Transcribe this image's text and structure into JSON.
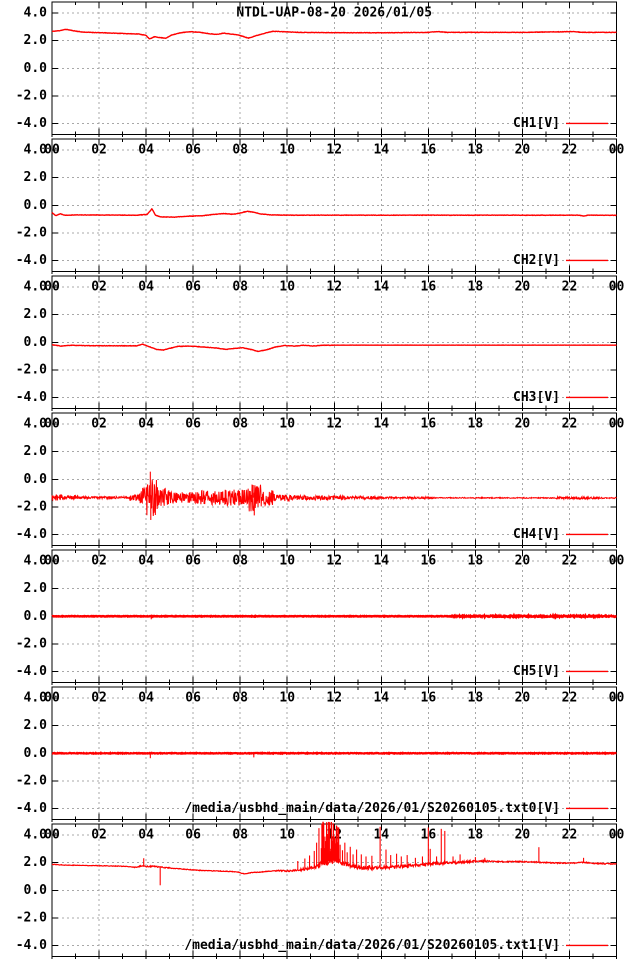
{
  "title": "NTDL-UAP-08-20 2026/01/05",
  "colors": {
    "trace": "#ff0000",
    "grid": "#a8a8a8",
    "border": "#000000",
    "text": "#000000"
  },
  "axes": {
    "x_tick_labels": [
      "00",
      "02",
      "04",
      "06",
      "08",
      "10",
      "12",
      "14",
      "16",
      "18",
      "20",
      "22",
      "00"
    ],
    "x_tick_hours": [
      0,
      2,
      4,
      6,
      8,
      10,
      12,
      14,
      16,
      18,
      20,
      22,
      24
    ],
    "x_minor_step": 1,
    "xlim": [
      0,
      24
    ],
    "y_tick_labels": [
      "4.0",
      "2.0",
      "0.0",
      "-2.0",
      "-4.0"
    ],
    "y_tick_values": [
      4,
      2,
      0,
      -2,
      -4
    ],
    "ylim": [
      -4.8,
      4.8
    ],
    "grid": "dashed"
  },
  "chart_data": [
    {
      "type": "line",
      "legend": "CH1[V]",
      "show_title": true,
      "show_top_xlabels": false,
      "stroke_width": 1.4,
      "seed": 11,
      "step": 0.02,
      "baseline": [
        [
          0,
          2.67
        ],
        [
          0.3,
          2.72
        ],
        [
          0.6,
          2.82
        ],
        [
          0.9,
          2.72
        ],
        [
          1.3,
          2.62
        ],
        [
          2.0,
          2.58
        ],
        [
          3.0,
          2.52
        ],
        [
          3.7,
          2.48
        ],
        [
          4.0,
          2.38
        ],
        [
          4.15,
          2.12
        ],
        [
          4.35,
          2.28
        ],
        [
          4.6,
          2.22
        ],
        [
          4.85,
          2.18
        ],
        [
          5.1,
          2.42
        ],
        [
          5.5,
          2.58
        ],
        [
          5.9,
          2.65
        ],
        [
          6.3,
          2.6
        ],
        [
          6.7,
          2.5
        ],
        [
          7.0,
          2.45
        ],
        [
          7.3,
          2.55
        ],
        [
          7.6,
          2.48
        ],
        [
          7.9,
          2.42
        ],
        [
          8.1,
          2.32
        ],
        [
          8.35,
          2.18
        ],
        [
          8.6,
          2.32
        ],
        [
          9.0,
          2.52
        ],
        [
          9.4,
          2.68
        ],
        [
          9.8,
          2.65
        ],
        [
          10.5,
          2.6
        ],
        [
          12,
          2.58
        ],
        [
          14,
          2.57
        ],
        [
          16,
          2.6
        ],
        [
          16.4,
          2.66
        ],
        [
          16.8,
          2.6
        ],
        [
          20,
          2.6
        ],
        [
          21.6,
          2.64
        ],
        [
          22.2,
          2.66
        ],
        [
          22.5,
          2.6
        ],
        [
          24,
          2.6
        ]
      ],
      "noise": [
        [
          0,
          24,
          0.015
        ]
      ],
      "spikes": []
    },
    {
      "type": "line",
      "legend": "CH2[V]",
      "show_title": false,
      "show_top_xlabels": true,
      "stroke_width": 1.4,
      "seed": 22,
      "step": 0.02,
      "baseline": [
        [
          0,
          -0.52
        ],
        [
          0.15,
          -0.75
        ],
        [
          0.35,
          -0.62
        ],
        [
          0.55,
          -0.72
        ],
        [
          1,
          -0.7
        ],
        [
          3.6,
          -0.72
        ],
        [
          4.05,
          -0.66
        ],
        [
          4.25,
          -0.26
        ],
        [
          4.4,
          -0.72
        ],
        [
          4.6,
          -0.84
        ],
        [
          5.2,
          -0.86
        ],
        [
          5.7,
          -0.8
        ],
        [
          6.4,
          -0.76
        ],
        [
          6.9,
          -0.66
        ],
        [
          7.3,
          -0.6
        ],
        [
          7.7,
          -0.66
        ],
        [
          8.0,
          -0.56
        ],
        [
          8.3,
          -0.44
        ],
        [
          8.55,
          -0.5
        ],
        [
          8.85,
          -0.62
        ],
        [
          9.3,
          -0.7
        ],
        [
          10,
          -0.72
        ],
        [
          22.4,
          -0.72
        ],
        [
          22.6,
          -0.78
        ],
        [
          22.8,
          -0.72
        ],
        [
          24,
          -0.73
        ]
      ],
      "noise": [
        [
          0,
          24,
          0.015
        ]
      ],
      "spikes": []
    },
    {
      "type": "line",
      "legend": "CH3[V]",
      "show_title": false,
      "show_top_xlabels": true,
      "stroke_width": 1.4,
      "seed": 33,
      "step": 0.02,
      "baseline": [
        [
          0,
          -0.18
        ],
        [
          0.4,
          -0.28
        ],
        [
          0.8,
          -0.22
        ],
        [
          1.5,
          -0.25
        ],
        [
          3.6,
          -0.26
        ],
        [
          3.85,
          -0.14
        ],
        [
          4.1,
          -0.3
        ],
        [
          4.45,
          -0.52
        ],
        [
          4.75,
          -0.56
        ],
        [
          5.05,
          -0.42
        ],
        [
          5.35,
          -0.3
        ],
        [
          5.9,
          -0.28
        ],
        [
          6.4,
          -0.34
        ],
        [
          7.0,
          -0.42
        ],
        [
          7.4,
          -0.52
        ],
        [
          7.7,
          -0.46
        ],
        [
          8.1,
          -0.4
        ],
        [
          8.45,
          -0.52
        ],
        [
          8.75,
          -0.66
        ],
        [
          9.1,
          -0.56
        ],
        [
          9.5,
          -0.34
        ],
        [
          9.9,
          -0.24
        ],
        [
          10.3,
          -0.28
        ],
        [
          10.7,
          -0.22
        ],
        [
          11.1,
          -0.27
        ],
        [
          11.5,
          -0.22
        ],
        [
          12,
          -0.21
        ],
        [
          24,
          -0.21
        ]
      ],
      "noise": [
        [
          0,
          12,
          0.015
        ],
        [
          12,
          24,
          0.004
        ]
      ],
      "spikes": []
    },
    {
      "type": "line",
      "legend": "CH4[V]",
      "show_title": false,
      "show_top_xlabels": true,
      "stroke_width": 1.0,
      "seed": 44,
      "step": 0.015,
      "baseline": [
        [
          0,
          -1.32
        ],
        [
          24,
          -1.36
        ]
      ],
      "noise": [
        [
          0,
          0.5,
          0.22
        ],
        [
          0.5,
          1.1,
          0.15
        ],
        [
          1.1,
          3.3,
          0.09
        ],
        [
          3.3,
          3.75,
          0.25
        ],
        [
          3.75,
          4.0,
          0.7
        ],
        [
          4.0,
          4.5,
          1.35
        ],
        [
          4.5,
          5.0,
          0.65
        ],
        [
          5.0,
          6.3,
          0.42
        ],
        [
          6.3,
          7.3,
          0.52
        ],
        [
          7.3,
          8.3,
          0.6
        ],
        [
          8.3,
          8.9,
          1.0
        ],
        [
          8.9,
          9.4,
          0.55
        ],
        [
          9.4,
          10.2,
          0.28
        ],
        [
          10.2,
          12.5,
          0.17
        ],
        [
          12.5,
          13.8,
          0.12
        ],
        [
          13.8,
          16.2,
          0.07
        ],
        [
          16.2,
          21.4,
          0.035
        ],
        [
          21.4,
          23.3,
          0.08
        ],
        [
          23.3,
          24,
          0.045
        ]
      ],
      "spikes": [
        [
          4.18,
          0.55
        ],
        [
          4.2,
          -2.95
        ],
        [
          4.35,
          -2.35
        ],
        [
          8.55,
          -0.42
        ],
        [
          8.6,
          -2.62
        ]
      ]
    },
    {
      "type": "line",
      "legend": "CH5[V]",
      "show_title": false,
      "show_top_xlabels": true,
      "stroke_width": 2.4,
      "seed": 55,
      "step": 0.02,
      "baseline": [
        [
          0,
          0
        ],
        [
          24,
          0
        ]
      ],
      "noise": [
        [
          0,
          17,
          0.02
        ],
        [
          17,
          24,
          0.05
        ]
      ],
      "spikes": [
        [
          4.22,
          -0.22
        ],
        [
          4.28,
          -0.14
        ],
        [
          8.6,
          -0.12
        ]
      ]
    },
    {
      "type": "line",
      "legend": "/media/usbhd_main/data/2026/01/S20260105.txt0[V]",
      "show_title": false,
      "show_top_xlabels": true,
      "stroke_width": 2.2,
      "seed": 66,
      "step": 0.02,
      "baseline": [
        [
          0,
          0
        ],
        [
          24,
          0
        ]
      ],
      "noise": [
        [
          0,
          24,
          0.025
        ]
      ],
      "spikes": [
        [
          4.18,
          -0.36
        ],
        [
          4.24,
          0.12
        ],
        [
          8.58,
          -0.3
        ],
        [
          8.63,
          0.1
        ],
        [
          11.5,
          0.1
        ],
        [
          12.05,
          -0.12
        ],
        [
          13.6,
          -0.08
        ]
      ]
    },
    {
      "type": "line",
      "legend": "/media/usbhd_main/data/2026/01/S20260105.txt1[V]",
      "show_title": false,
      "show_top_xlabels": true,
      "stroke_width": 1.2,
      "seed": 77,
      "step": 0.02,
      "baseline": [
        [
          0,
          1.88
        ],
        [
          0.6,
          1.82
        ],
        [
          2,
          1.78
        ],
        [
          3,
          1.74
        ],
        [
          3.6,
          1.66
        ],
        [
          3.82,
          1.78
        ],
        [
          4.0,
          1.72
        ],
        [
          4.3,
          1.74
        ],
        [
          4.55,
          1.68
        ],
        [
          4.75,
          1.66
        ],
        [
          5.2,
          1.58
        ],
        [
          5.8,
          1.5
        ],
        [
          6.3,
          1.44
        ],
        [
          6.8,
          1.4
        ],
        [
          7.4,
          1.38
        ],
        [
          7.9,
          1.32
        ],
        [
          8.2,
          1.18
        ],
        [
          8.5,
          1.28
        ],
        [
          9.0,
          1.34
        ],
        [
          9.6,
          1.42
        ],
        [
          10.1,
          1.4
        ],
        [
          10.6,
          1.5
        ],
        [
          11.1,
          1.62
        ],
        [
          11.5,
          1.92
        ],
        [
          11.8,
          2.12
        ],
        [
          12.05,
          2.18
        ],
        [
          12.3,
          1.98
        ],
        [
          12.6,
          1.82
        ],
        [
          12.9,
          1.7
        ],
        [
          13.3,
          1.62
        ],
        [
          13.8,
          1.64
        ],
        [
          14.3,
          1.68
        ],
        [
          14.9,
          1.74
        ],
        [
          15.5,
          1.8
        ],
        [
          16.1,
          1.9
        ],
        [
          16.6,
          1.96
        ],
        [
          17.2,
          2.02
        ],
        [
          17.8,
          2.08
        ],
        [
          18.3,
          2.12
        ],
        [
          19.0,
          2.06
        ],
        [
          19.8,
          2.08
        ],
        [
          20.6,
          2.04
        ],
        [
          21.3,
          1.98
        ],
        [
          22.0,
          1.96
        ],
        [
          22.6,
          2.02
        ],
        [
          23.2,
          1.94
        ],
        [
          24,
          1.9
        ]
      ],
      "noise": [
        [
          0,
          3.5,
          0.02
        ],
        [
          3.5,
          5,
          0.04
        ],
        [
          5,
          9.5,
          0.025
        ],
        [
          9.5,
          10.5,
          0.05
        ],
        [
          10.5,
          11.3,
          0.1
        ],
        [
          11.3,
          12.3,
          0.22
        ],
        [
          12.3,
          13.5,
          0.16
        ],
        [
          13.5,
          15.2,
          0.12
        ],
        [
          15.2,
          17.2,
          0.1
        ],
        [
          17.2,
          18.6,
          0.07
        ],
        [
          18.6,
          24,
          0.04
        ]
      ],
      "spikes": [
        [
          3.9,
          2.32
        ],
        [
          4.6,
          0.36
        ],
        [
          10.45,
          2.12
        ],
        [
          10.75,
          2.3
        ],
        [
          10.95,
          2.52
        ],
        [
          11.15,
          2.85
        ],
        [
          11.25,
          3.45
        ],
        [
          11.35,
          4.5
        ],
        [
          11.45,
          3.05
        ],
        [
          12.25,
          3.3
        ],
        [
          12.35,
          2.9
        ],
        [
          12.45,
          3.45
        ],
        [
          12.55,
          2.75
        ],
        [
          12.68,
          3.15
        ],
        [
          12.8,
          2.6
        ],
        [
          12.95,
          2.95
        ],
        [
          13.15,
          2.6
        ],
        [
          13.35,
          2.45
        ],
        [
          13.6,
          2.5
        ],
        [
          13.95,
          4.6
        ],
        [
          14.2,
          2.95
        ],
        [
          14.4,
          2.55
        ],
        [
          14.65,
          2.65
        ],
        [
          14.85,
          2.45
        ],
        [
          15.1,
          2.55
        ],
        [
          15.45,
          2.35
        ],
        [
          15.75,
          2.45
        ],
        [
          16.0,
          4.55
        ],
        [
          16.08,
          3.0
        ],
        [
          16.35,
          2.45
        ],
        [
          16.55,
          4.45
        ],
        [
          16.7,
          4.3
        ],
        [
          17.05,
          2.45
        ],
        [
          17.35,
          2.6
        ],
        [
          18.0,
          2.4
        ],
        [
          18.4,
          2.35
        ],
        [
          20.7,
          3.12
        ],
        [
          22.6,
          2.35
        ]
      ],
      "bursts": [
        {
          "from": 11.48,
          "to": 12.2,
          "step": 0.022,
          "min": 2.6,
          "max": 5.0
        }
      ]
    }
  ]
}
